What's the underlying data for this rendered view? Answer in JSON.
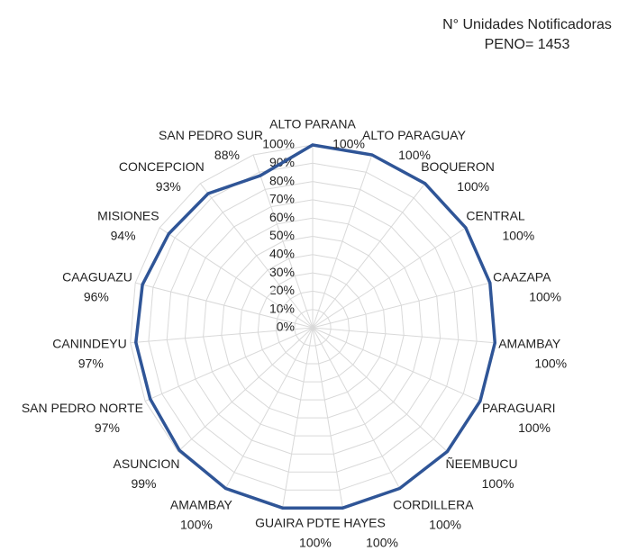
{
  "chart_data": {
    "type": "radar",
    "title": "N° Unidades Notificadoras",
    "subtitle": "PENO= 1453",
    "categories": [
      "ALTO PARANA",
      "ALTO PARAGUAY",
      "BOQUERON",
      "CENTRAL",
      "CAAZAPA",
      "AMAMBAY",
      "PARAGUARI",
      "ÑEEMBUCU",
      "CORDILLERA",
      "PDTE HAYES",
      "GUAIRA",
      "AMAMBAY",
      "ASUNCION",
      "SAN PEDRO NORTE",
      "CANINDEYU",
      "CAAGUAZU",
      "MISIONES",
      "CONCEPCION",
      "SAN PEDRO SUR"
    ],
    "values": [
      100,
      100,
      100,
      100,
      100,
      100,
      100,
      100,
      100,
      100,
      100,
      100,
      99,
      97,
      97,
      96,
      94,
      93,
      88
    ],
    "value_labels": [
      "100%",
      "100%",
      "100%",
      "100%",
      "100%",
      "100%",
      "100%",
      "100%",
      "100%",
      "100%",
      "100%",
      "100%",
      "99%",
      "97%",
      "97%",
      "96%",
      "94%",
      "93%",
      "88%"
    ],
    "color": "#2f5597",
    "ylim": [
      0,
      100
    ],
    "yticks": [
      {
        "value": 0,
        "label": "0%"
      },
      {
        "value": 10,
        "label": "10%"
      },
      {
        "value": 20,
        "label": "20%"
      },
      {
        "value": 30,
        "label": "30%"
      },
      {
        "value": 40,
        "label": "40%"
      },
      {
        "value": 50,
        "label": "50%"
      },
      {
        "value": 60,
        "label": "60%"
      },
      {
        "value": 70,
        "label": "70%"
      },
      {
        "value": 80,
        "label": "80%"
      },
      {
        "value": 90,
        "label": "90%"
      },
      {
        "value": 100,
        "label": "100%"
      }
    ],
    "grid": true
  }
}
